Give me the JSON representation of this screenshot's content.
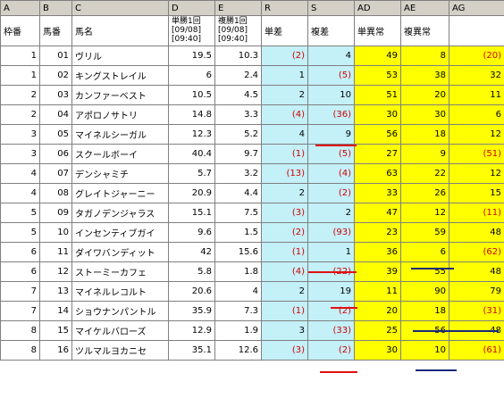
{
  "columns": [
    "A",
    "B",
    "C",
    "D",
    "E",
    "R",
    "S",
    "AD",
    "AE",
    "AG"
  ],
  "header": {
    "waku": "枠番",
    "umaban": "馬番",
    "name": "馬名",
    "win_odds": [
      "単勝1回",
      "[09/08]",
      "[09:40]"
    ],
    "place_odds": [
      "複勝1回",
      "[09/08]",
      "[09:40]"
    ],
    "tan_sa": "単差",
    "fuku_sa": "複差",
    "tan_ijo": "単異常",
    "fuku_ijo": "複異常",
    "ag": ""
  },
  "rows": [
    {
      "waku": "1",
      "umaban": "01",
      "name": "ヴリル",
      "d": "19.5",
      "e": "10.3",
      "r": "(2)",
      "s": "4",
      "ad": "49",
      "ae": "8",
      "ag": "(20)"
    },
    {
      "waku": "1",
      "umaban": "02",
      "name": "キングストレイル",
      "d": "6",
      "e": "2.4",
      "r": "1",
      "s": "(5)",
      "ad": "53",
      "ae": "38",
      "ag": "32"
    },
    {
      "waku": "2",
      "umaban": "03",
      "name": "カンファーベスト",
      "d": "10.5",
      "e": "4.5",
      "r": "2",
      "s": "10",
      "ad": "51",
      "ae": "20",
      "ag": "11"
    },
    {
      "waku": "2",
      "umaban": "04",
      "name": "アポロノサトリ",
      "d": "14.8",
      "e": "3.3",
      "r": "(4)",
      "s": "(36)",
      "ad": "30",
      "ae": "30",
      "ag": "6"
    },
    {
      "waku": "3",
      "umaban": "05",
      "name": "マイネルシーガル",
      "d": "12.3",
      "e": "5.2",
      "r": "4",
      "s": "9",
      "ad": "56",
      "ae": "18",
      "ag": "12"
    },
    {
      "waku": "3",
      "umaban": "06",
      "name": "スクールボーイ",
      "d": "40.4",
      "e": "9.7",
      "r": "(1)",
      "s": "(5)",
      "ad": "27",
      "ae": "9",
      "ag": "(51)"
    },
    {
      "waku": "4",
      "umaban": "07",
      "name": "デンシャミチ",
      "d": "5.7",
      "e": "3.2",
      "r": "(13)",
      "s": "(4)",
      "ad": "63",
      "ae": "22",
      "ag": "12"
    },
    {
      "waku": "4",
      "umaban": "08",
      "name": "グレイトジャーニー",
      "d": "20.9",
      "e": "4.4",
      "r": "2",
      "s": "(2)",
      "ad": "33",
      "ae": "26",
      "ag": "15"
    },
    {
      "waku": "5",
      "umaban": "09",
      "name": "タガノデンジャラス",
      "d": "15.1",
      "e": "7.5",
      "r": "(3)",
      "s": "2",
      "ad": "47",
      "ae": "12",
      "ag": "(11)"
    },
    {
      "waku": "5",
      "umaban": "10",
      "name": "インセンティブガイ",
      "d": "9.6",
      "e": "1.5",
      "r": "(2)",
      "s": "(93)",
      "ad": "23",
      "ae": "59",
      "ag": "48"
    },
    {
      "waku": "6",
      "umaban": "11",
      "name": "ダイワバンディット",
      "d": "42",
      "e": "15.6",
      "r": "(1)",
      "s": "1",
      "ad": "36",
      "ae": "6",
      "ag": "(62)"
    },
    {
      "waku": "6",
      "umaban": "12",
      "name": "ストーミーカフェ",
      "d": "5.8",
      "e": "1.8",
      "r": "(4)",
      "s": "(22)",
      "ad": "39",
      "ae": "55",
      "ag": "48"
    },
    {
      "waku": "7",
      "umaban": "13",
      "name": "マイネルレコルト",
      "d": "20.6",
      "e": "4",
      "r": "2",
      "s": "19",
      "ad": "11",
      "ae": "90",
      "ag": "79"
    },
    {
      "waku": "7",
      "umaban": "14",
      "name": "ショウナンパントル",
      "d": "35.9",
      "e": "7.3",
      "r": "(1)",
      "s": "(2)",
      "ad": "20",
      "ae": "18",
      "ag": "(31)"
    },
    {
      "waku": "8",
      "umaban": "15",
      "name": "マイケルバローズ",
      "d": "12.9",
      "e": "1.9",
      "r": "3",
      "s": "(33)",
      "ad": "25",
      "ae": "56",
      "ag": "48"
    },
    {
      "waku": "8",
      "umaban": "16",
      "name": "ツルマルヨカニセ",
      "d": "35.1",
      "e": "12.6",
      "r": "(3)",
      "s": "(2)",
      "ad": "30",
      "ae": "10",
      "ag": "(61)"
    }
  ],
  "colors": {
    "cyan": "#c4f0f8",
    "yellow": "#ffff00",
    "negative": "#d00000",
    "red_mark": "#e01010",
    "navy_mark": "#1a2a7a"
  }
}
